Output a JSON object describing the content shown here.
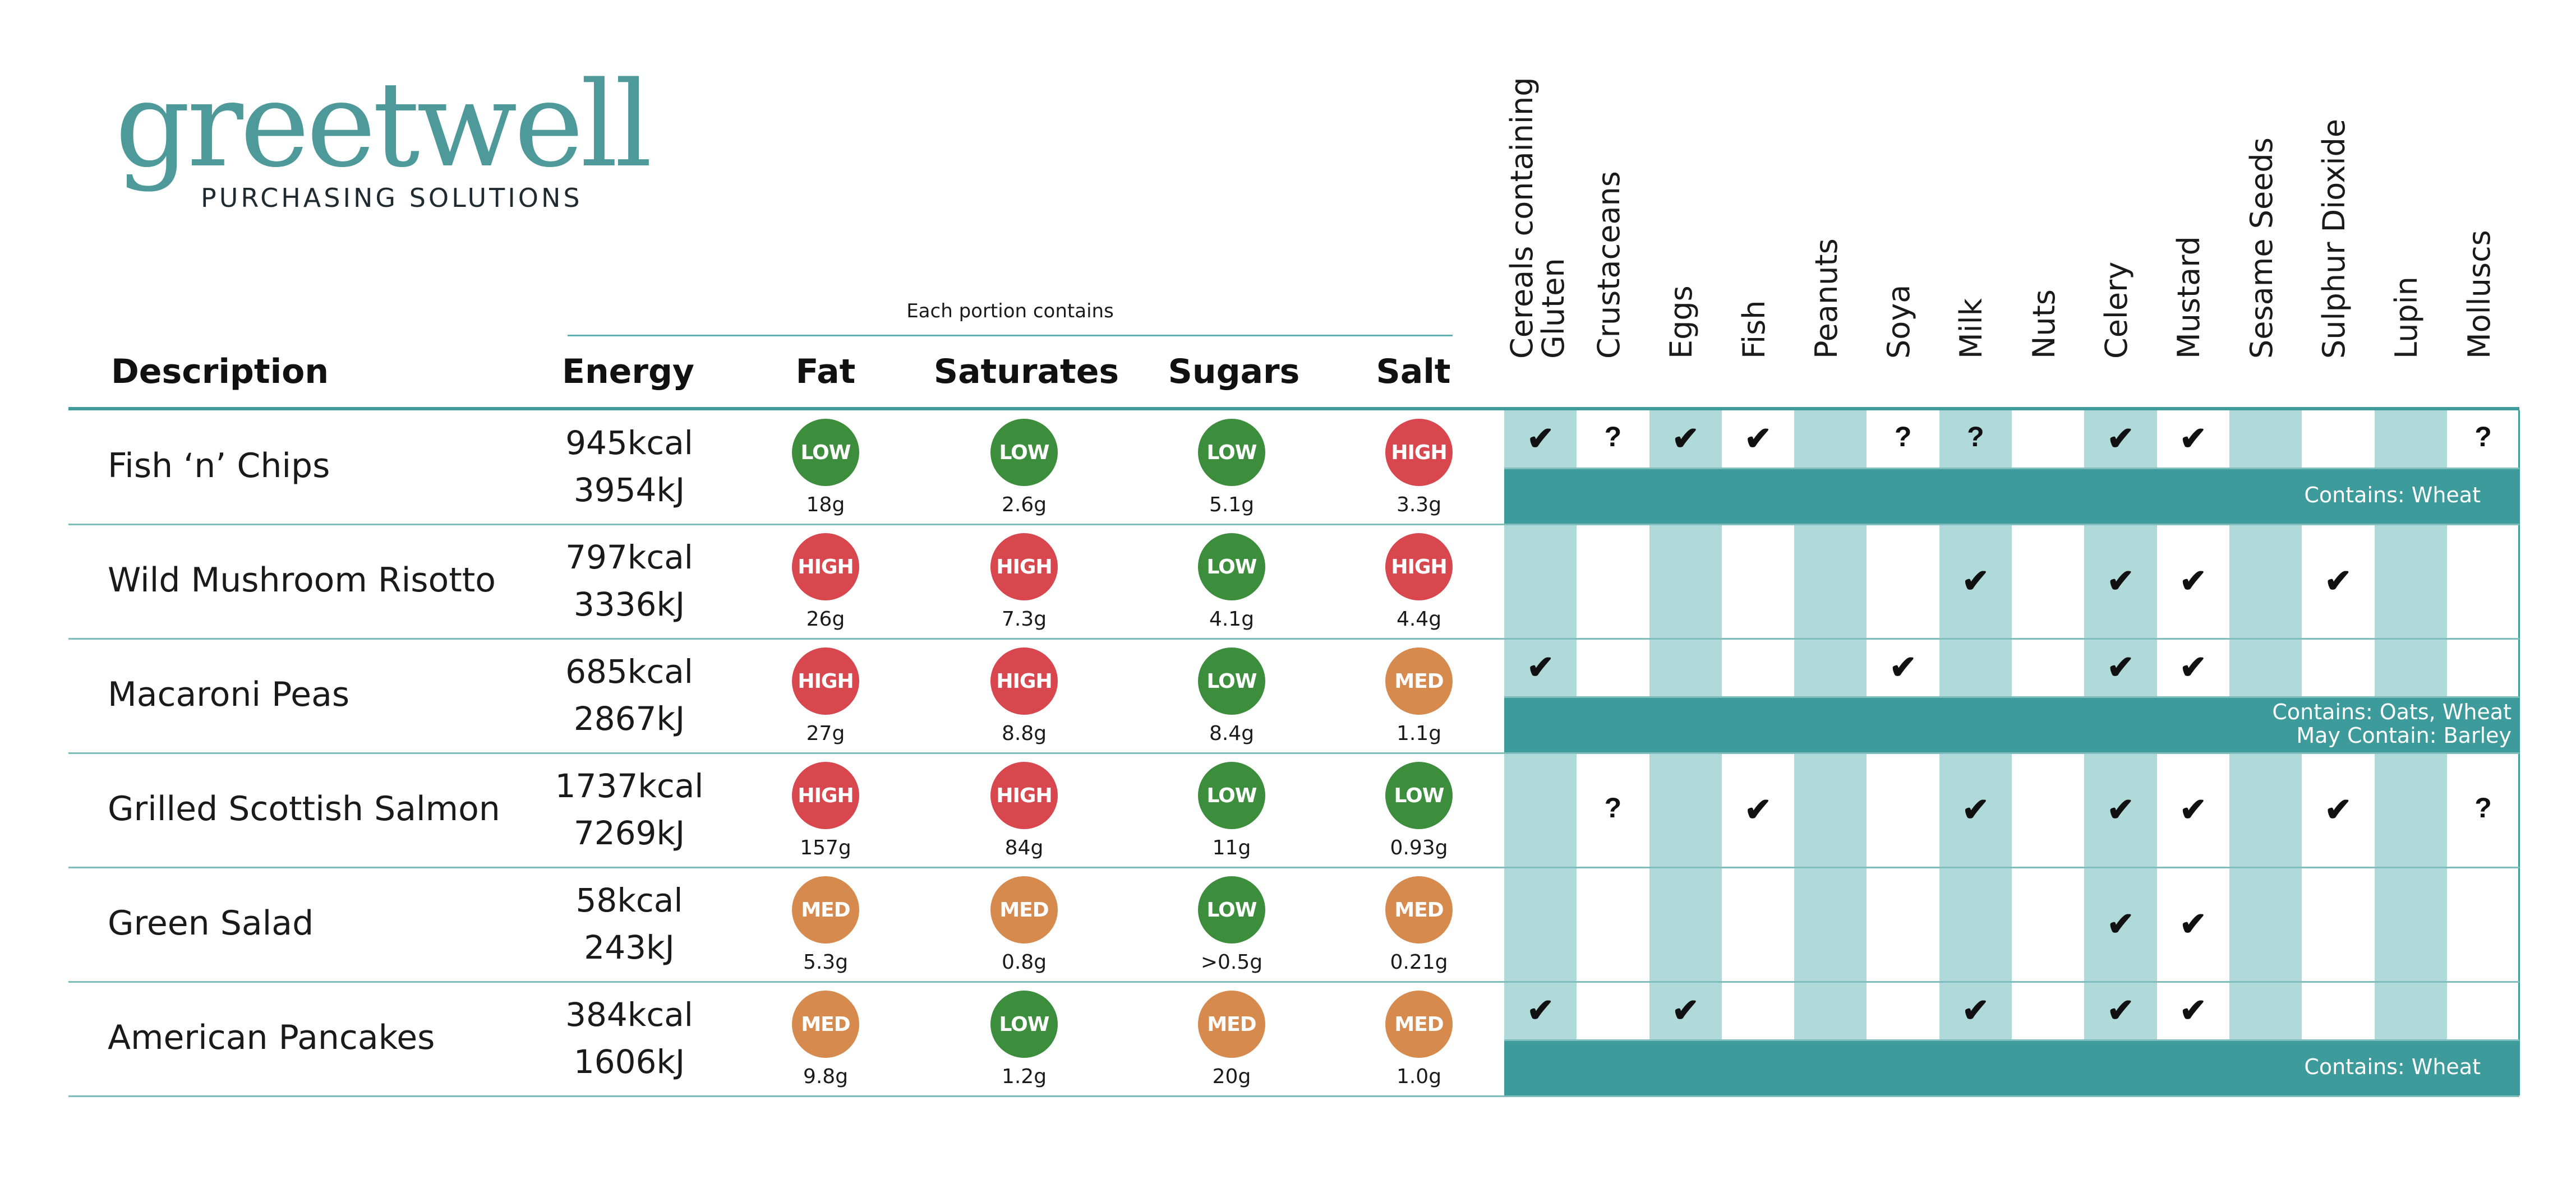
{
  "logo": {
    "word": "greetwell",
    "tagline": "PURCHASING SOLUTIONS"
  },
  "portion_label": "Each portion contains",
  "columns": {
    "description": "Description",
    "energy": "Energy",
    "fat": "Fat",
    "saturates": "Saturates",
    "sugars": "Sugars",
    "salt": "Salt"
  },
  "allergens": [
    "Cereals containing Gluten",
    "Crustaceans",
    "Eggs",
    "Fish",
    "Peanuts",
    "Soya",
    "Milk",
    "Nuts",
    "Celery",
    "Mustard",
    "Sesame Seeds",
    "Sulphur Dioxide",
    "Lupin",
    "Molluscs"
  ],
  "symbols": {
    "yes": "✔",
    "maybe": "?"
  },
  "colors": {
    "low": "#3c8d3c",
    "high": "#d9474e",
    "med": "#d68a4e",
    "teal": "#3e9b9b",
    "stripe": "#b0d9d9"
  },
  "rows": [
    {
      "name": "Fish ‘n’ Chips",
      "kcal": "945kcal",
      "kj": "3954kJ",
      "nutrients": [
        {
          "level": "LOW",
          "amount": "18g"
        },
        {
          "level": "LOW",
          "amount": "2.6g"
        },
        {
          "level": "LOW",
          "amount": "5.1g"
        },
        {
          "level": "HIGH",
          "amount": "3.3g"
        }
      ],
      "marks": {
        "0": "yes",
        "1": "maybe",
        "2": "yes",
        "3": "yes",
        "5": "maybe",
        "6": "maybe",
        "8": "yes",
        "9": "yes",
        "13": "maybe"
      },
      "note": [
        "Contains: Wheat"
      ]
    },
    {
      "name": "Wild Mushroom Risotto",
      "kcal": "797kcal",
      "kj": "3336kJ",
      "nutrients": [
        {
          "level": "HIGH",
          "amount": "26g"
        },
        {
          "level": "HIGH",
          "amount": "7.3g"
        },
        {
          "level": "LOW",
          "amount": "4.1g"
        },
        {
          "level": "HIGH",
          "amount": "4.4g"
        }
      ],
      "marks": {
        "6": "yes",
        "8": "yes",
        "9": "yes",
        "11": "yes"
      },
      "note": []
    },
    {
      "name": "Macaroni Peas",
      "kcal": "685kcal",
      "kj": "2867kJ",
      "nutrients": [
        {
          "level": "HIGH",
          "amount": "27g"
        },
        {
          "level": "HIGH",
          "amount": "8.8g"
        },
        {
          "level": "LOW",
          "amount": "8.4g"
        },
        {
          "level": "MED",
          "amount": "1.1g"
        }
      ],
      "marks": {
        "0": "yes",
        "5": "yes",
        "8": "yes",
        "9": "yes"
      },
      "note": [
        "Contains: Oats, Wheat",
        "May Contain: Barley"
      ]
    },
    {
      "name": "Grilled Scottish Salmon",
      "kcal": "1737kcal",
      "kj": "7269kJ",
      "nutrients": [
        {
          "level": "HIGH",
          "amount": "157g"
        },
        {
          "level": "HIGH",
          "amount": "84g"
        },
        {
          "level": "LOW",
          "amount": "11g"
        },
        {
          "level": "LOW",
          "amount": "0.93g"
        }
      ],
      "marks": {
        "1": "maybe",
        "3": "yes",
        "6": "yes",
        "8": "yes",
        "9": "yes",
        "11": "yes",
        "13": "maybe"
      },
      "note": []
    },
    {
      "name": "Green Salad",
      "kcal": "58kcal",
      "kj": "243kJ",
      "nutrients": [
        {
          "level": "MED",
          "amount": "5.3g"
        },
        {
          "level": "MED",
          "amount": "0.8g"
        },
        {
          "level": "LOW",
          "amount": ">0.5g"
        },
        {
          "level": "MED",
          "amount": "0.21g"
        }
      ],
      "marks": {
        "8": "yes",
        "9": "yes"
      },
      "note": []
    },
    {
      "name": "American Pancakes",
      "kcal": "384kcal",
      "kj": "1606kJ",
      "nutrients": [
        {
          "level": "MED",
          "amount": "9.8g"
        },
        {
          "level": "LOW",
          "amount": "1.2g"
        },
        {
          "level": "MED",
          "amount": "20g"
        },
        {
          "level": "MED",
          "amount": "1.0g"
        }
      ],
      "marks": {
        "0": "yes",
        "2": "yes",
        "6": "yes",
        "8": "yes",
        "9": "yes"
      },
      "note": [
        "Contains: Wheat"
      ]
    }
  ]
}
